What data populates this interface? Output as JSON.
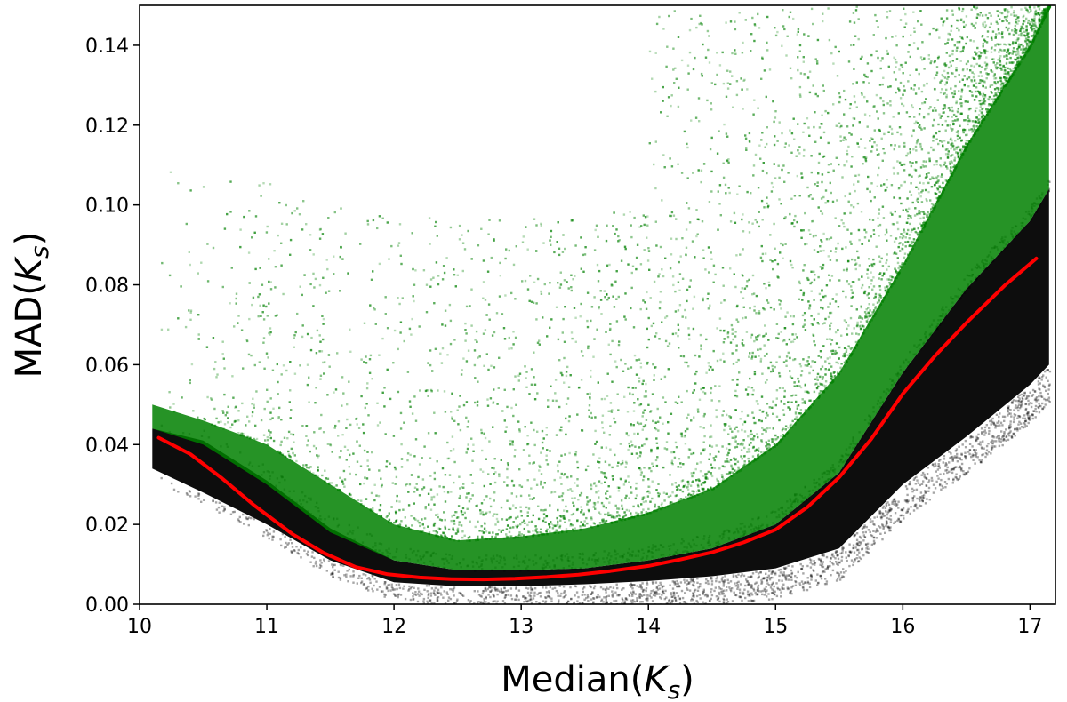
{
  "chart_data": {
    "type": "scatter",
    "title": "",
    "xlabel": "Median(K_s)",
    "ylabel": "MAD(K_s)",
    "xlim": [
      10.0,
      17.2
    ],
    "ylim": [
      0.0,
      0.15
    ],
    "x_ticks": [
      10,
      11,
      12,
      13,
      14,
      15,
      16,
      17
    ],
    "x_tick_labels": [
      "10",
      "11",
      "12",
      "13",
      "14",
      "15",
      "16",
      "17"
    ],
    "y_ticks": [
      0.0,
      0.02,
      0.04,
      0.06,
      0.08,
      0.1,
      0.12,
      0.14
    ],
    "y_tick_labels": [
      "0.00",
      "0.02",
      "0.04",
      "0.06",
      "0.08",
      "0.10",
      "0.12",
      "0.14"
    ],
    "grid": false,
    "legend": "none",
    "colors": {
      "black_points": "#000000",
      "green_points": "#008000",
      "median_line": "#ff0000"
    },
    "series": [
      {
        "kind": "line",
        "color": "#ff0000",
        "x": [
          10.15,
          10.4,
          10.65,
          10.9,
          11.2,
          11.45,
          11.7,
          11.95,
          12.2,
          12.45,
          12.7,
          12.95,
          13.2,
          13.45,
          13.7,
          14.0,
          14.25,
          14.5,
          14.75,
          15.0,
          15.25,
          15.5,
          15.75,
          16.0,
          16.25,
          16.5,
          16.8,
          17.05
        ],
        "y": [
          0.0417,
          0.0376,
          0.0315,
          0.0248,
          0.0176,
          0.0128,
          0.0093,
          0.0075,
          0.0067,
          0.0063,
          0.0062,
          0.0064,
          0.0068,
          0.0074,
          0.0083,
          0.0096,
          0.0112,
          0.013,
          0.0155,
          0.0187,
          0.0243,
          0.0318,
          0.0413,
          0.0527,
          0.0621,
          0.0705,
          0.0798,
          0.0866
        ]
      },
      {
        "kind": "scatter-density",
        "color": "#000000",
        "x": [
          10.1,
          10.5,
          11.0,
          11.5,
          12.0,
          12.5,
          13.0,
          13.5,
          14.0,
          14.5,
          15.0,
          15.5,
          16.0,
          16.5,
          17.0,
          17.15
        ],
        "y_low": [
          0.034,
          0.028,
          0.02,
          0.011,
          0.0055,
          0.0045,
          0.0045,
          0.005,
          0.0058,
          0.007,
          0.009,
          0.014,
          0.03,
          0.042,
          0.055,
          0.06
        ],
        "y_high": [
          0.044,
          0.041,
          0.031,
          0.019,
          0.011,
          0.0085,
          0.0085,
          0.009,
          0.011,
          0.014,
          0.02,
          0.033,
          0.058,
          0.079,
          0.096,
          0.104
        ]
      },
      {
        "kind": "scatter-density",
        "color": "#008000",
        "x": [
          10.1,
          10.5,
          11.0,
          11.5,
          12.0,
          12.5,
          13.0,
          13.5,
          14.0,
          14.5,
          15.0,
          15.5,
          16.0,
          16.5,
          17.0,
          17.15
        ],
        "y_low": [
          0.044,
          0.04,
          0.03,
          0.018,
          0.011,
          0.0085,
          0.0085,
          0.009,
          0.011,
          0.014,
          0.02,
          0.033,
          0.058,
          0.079,
          0.096,
          0.104
        ],
        "y_high": [
          0.05,
          0.046,
          0.04,
          0.03,
          0.02,
          0.016,
          0.017,
          0.019,
          0.023,
          0.029,
          0.04,
          0.058,
          0.085,
          0.115,
          0.14,
          0.15
        ]
      }
    ]
  }
}
